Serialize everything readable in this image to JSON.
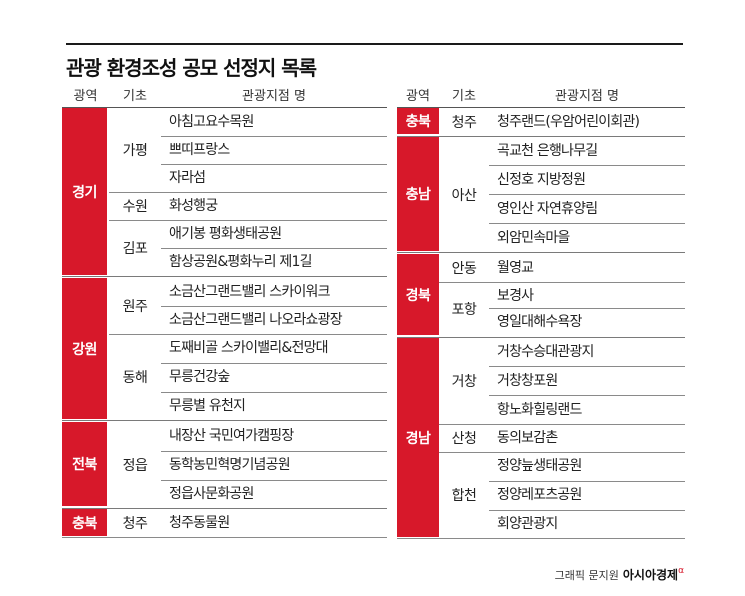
{
  "title": "관광 환경조성 공모 선정지 목록",
  "headers": {
    "region": "광역",
    "city": "기초",
    "site": "관광지점 명"
  },
  "left": {
    "regions": [
      "경기",
      "강원",
      "전북",
      "충북"
    ],
    "cities": [
      "가평",
      "수원",
      "김포",
      "원주",
      "동해",
      "정읍",
      "청주"
    ],
    "sites": [
      "아침고요수목원",
      "쁘띠프랑스",
      "자라섬",
      "화성행궁",
      "애기봉 평화생태공원",
      "함상공원&평화누리 제1길",
      "소금산그랜드밸리 스카이워크",
      "소금산그랜드밸리 나오라쇼광장",
      "도째비골 스카이밸리&전망대",
      "무릉건강숲",
      "무릉별 유천지",
      "내장산 국민여가캠핑장",
      "동학농민혁명기념공원",
      "정읍사문화공원",
      "청주동물원"
    ]
  },
  "right": {
    "regions": [
      "충북",
      "충남",
      "경북",
      "경남"
    ],
    "cities": [
      "청주",
      "아산",
      "안동",
      "포항",
      "거창",
      "산청",
      "합천"
    ],
    "sites": [
      "청주랜드(우암어린이회관)",
      "곡교천 은행나무길",
      "신정호 지방정원",
      "영인산 자연휴양림",
      "외암민속마을",
      "월영교",
      "보경사",
      "영일대해수욕장",
      "거창수승대관광지",
      "거창창포원",
      "항노화힐링랜드",
      "동의보감촌",
      "정양늪생태공원",
      "정양레포츠공원",
      "회양관광지"
    ]
  },
  "credit": {
    "text": "그래픽 문지원",
    "brand": "아시아경제",
    "mark": "α"
  },
  "colors": {
    "accent": "#d7182a"
  }
}
